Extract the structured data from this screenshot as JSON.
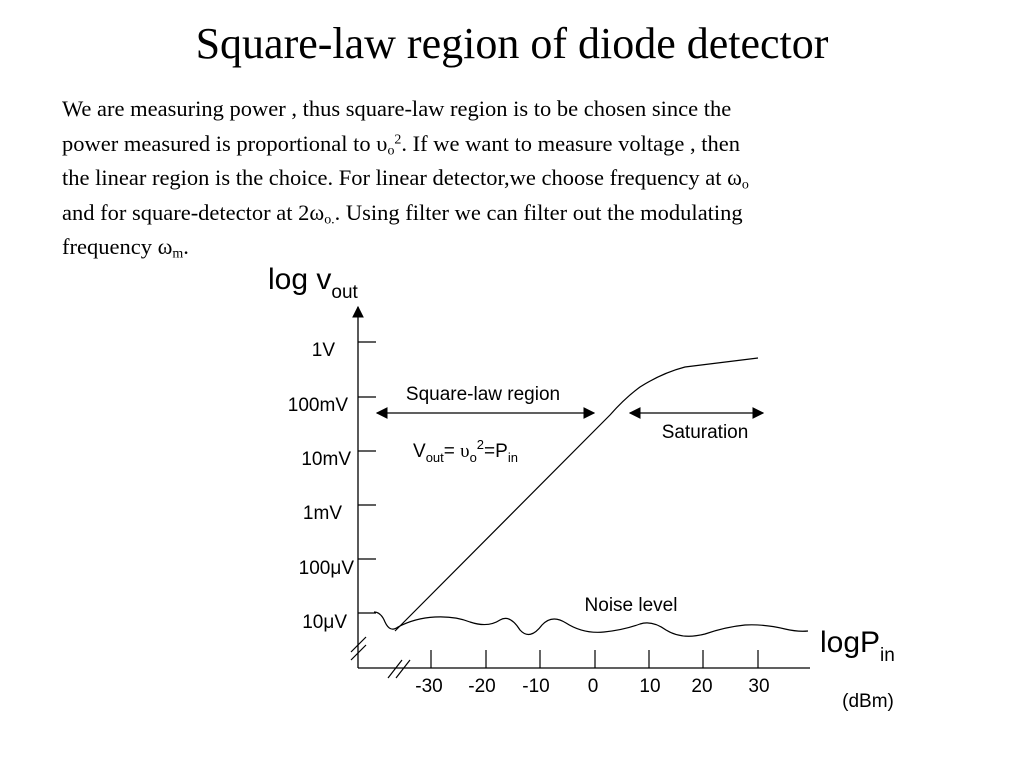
{
  "slide": {
    "title": "Square-law region of diode detector",
    "para": {
      "l1": "We are measuring power , thus square-law region is to be chosen since the",
      "l2a": "power measured is proportional to ",
      "l2_sym": "υ",
      "l2_sub": "o",
      "l2_sup": "2",
      "l2b": ". If we want to measure voltage , then",
      "l3a": "the linear region is the choice. For linear detector,we choose frequency at ",
      "l3_sym": "ω",
      "l3_sub": "o",
      "l4a": "and for square-detector at 2",
      "l4_sym": "ω",
      "l4_sub": "o.",
      "l4b": ". Using filter we can filter out the modulating",
      "l5a": "frequency ",
      "l5_sym": "ω",
      "l5_sub": "m",
      "l5b": "."
    }
  },
  "diagram": {
    "y_axis_title": "log v",
    "y_axis_title_sub": "out",
    "x_axis_title": "logP",
    "x_axis_title_sub": "in",
    "x_unit": "(dBm)",
    "y_ticks": [
      "1V",
      "100mV",
      "10mV",
      "1mV",
      "100μV",
      "10μV"
    ],
    "x_ticks": [
      "-30",
      "-20",
      "-10",
      "0",
      "10",
      "20",
      "30"
    ],
    "region_square_law": "Square-law region",
    "region_saturation": "Saturation",
    "noise_label": "Noise level",
    "eq_v": "V",
    "eq_v_sub": "out",
    "eq_mid": "= ",
    "eq_sym": "υ",
    "eq_sym_sub": "o",
    "eq_sup": "2",
    "eq_p": "=P",
    "eq_p_sub": "in"
  }
}
